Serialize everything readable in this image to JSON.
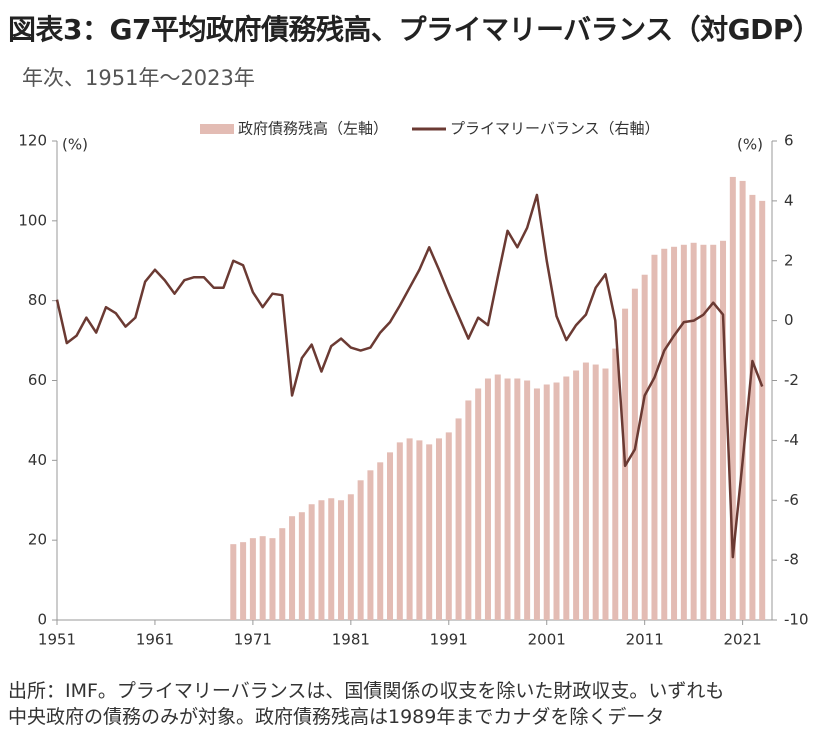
{
  "chart_data": {
    "type": "bar-line",
    "title": "図表3：G7平均政府債務残高、プライマリーバランス（対GDP）",
    "subtitle": "年次、1951年～2023年",
    "y_unit": "(%)",
    "y2_unit": "(%)",
    "note": [
      "出所：IMF。プライマリーバランスは、国債関係の収支を除いた財政収支。いずれも",
      "中央政府の債務のみが対象。政府債務残高は1989年までカナダを除くデータ"
    ],
    "x": [
      1951,
      1952,
      1953,
      1954,
      1955,
      1956,
      1957,
      1958,
      1959,
      1960,
      1961,
      1962,
      1963,
      1964,
      1965,
      1966,
      1967,
      1968,
      1969,
      1970,
      1971,
      1972,
      1973,
      1974,
      1975,
      1976,
      1977,
      1978,
      1979,
      1980,
      1981,
      1982,
      1983,
      1984,
      1985,
      1986,
      1987,
      1988,
      1989,
      1990,
      1991,
      1992,
      1993,
      1994,
      1995,
      1996,
      1997,
      1998,
      1999,
      2000,
      2001,
      2002,
      2003,
      2004,
      2005,
      2006,
      2007,
      2008,
      2009,
      2010,
      2011,
      2012,
      2013,
      2014,
      2015,
      2016,
      2017,
      2018,
      2019,
      2020,
      2021,
      2022,
      2023
    ],
    "xlim": [
      1951,
      2024
    ],
    "xticks": [
      1951,
      1961,
      1971,
      1981,
      1991,
      2001,
      2011,
      2021
    ],
    "ylim": [
      0,
      120
    ],
    "yticks": [
      0,
      20,
      40,
      60,
      80,
      100,
      120
    ],
    "y2lim": [
      -10,
      6
    ],
    "y2ticks": [
      -10,
      -8,
      -6,
      -4,
      -2,
      0,
      2,
      4,
      6
    ],
    "series": [
      {
        "name": "政府債務残高（左軸）",
        "kind": "bar",
        "color": "#e3bcb4",
        "values": [
          null,
          null,
          null,
          null,
          null,
          null,
          null,
          null,
          null,
          null,
          null,
          null,
          null,
          null,
          null,
          null,
          null,
          null,
          19,
          19.5,
          20.5,
          21,
          20.5,
          23,
          26,
          27,
          29,
          30,
          30.5,
          30,
          31.5,
          35,
          37.5,
          39.5,
          42,
          44.5,
          45.5,
          45,
          44,
          45.5,
          47,
          50.5,
          55,
          58,
          60.5,
          61.5,
          60.5,
          60.5,
          60,
          58,
          59,
          59.5,
          61,
          62.5,
          64.5,
          64,
          63,
          68,
          78,
          83,
          86.5,
          91.5,
          93,
          93.5,
          94,
          94.5,
          94,
          94,
          95,
          111,
          110,
          106.5,
          105
        ]
      },
      {
        "name": "プライマリーバランス（右軸）",
        "kind": "line",
        "axis": "y2",
        "color": "#6b3a33",
        "values": [
          0.7,
          -0.75,
          -0.5,
          0.1,
          -0.4,
          0.45,
          0.25,
          -0.2,
          0.1,
          1.3,
          1.7,
          1.35,
          0.9,
          1.35,
          1.45,
          1.45,
          1.1,
          1.1,
          2,
          1.85,
          0.95,
          0.45,
          0.9,
          0.85,
          -2.5,
          -1.25,
          -0.8,
          -1.7,
          -0.85,
          -0.6,
          -0.9,
          -1.0,
          -0.9,
          -0.4,
          -0.05,
          0.5,
          1.1,
          1.7,
          2.45,
          1.7,
          0.9,
          0.15,
          -0.6,
          0.1,
          -0.15,
          1.45,
          3,
          2.45,
          3.1,
          4.2,
          2,
          0.15,
          -0.65,
          -0.15,
          0.2,
          1.1,
          1.55,
          0,
          -4.85,
          -4.3,
          -2.5,
          -1.9,
          -1.0,
          -0.5,
          -0.05,
          0,
          0.2,
          0.6,
          0.2,
          -7.9,
          -4.7,
          -1.35,
          -2.2
        ]
      }
    ]
  }
}
